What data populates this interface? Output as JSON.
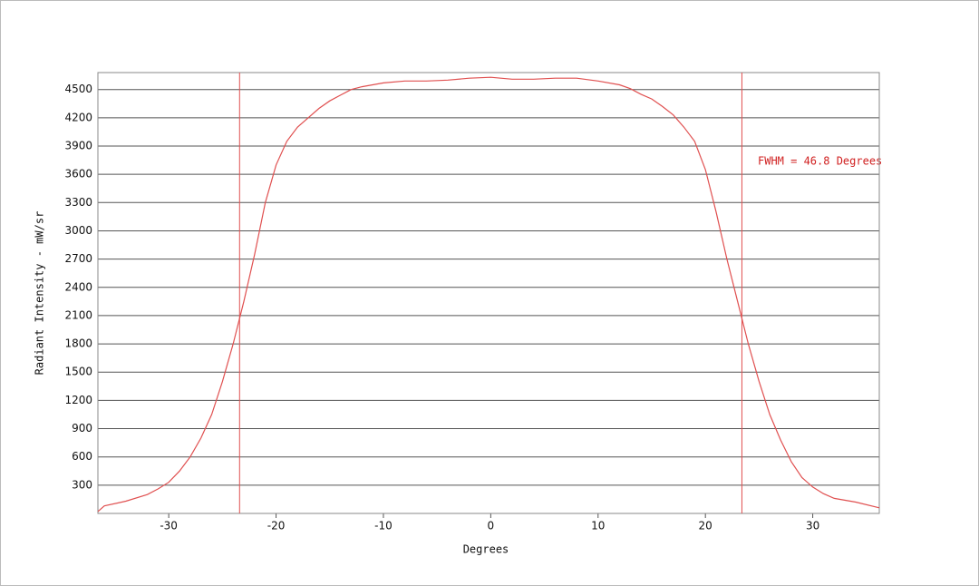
{
  "chart_data": {
    "type": "line",
    "x_label": "Degrees",
    "y_label": "Radiant Intensity - mW/sr",
    "annotation": "FWHM = 46.8 Degrees",
    "x": [
      -36.6,
      -36,
      -34,
      -32,
      -31,
      -30,
      -29,
      -28,
      -27,
      -26,
      -25,
      -24,
      -23,
      -22,
      -21,
      -20,
      -19,
      -18,
      -17,
      -16,
      -15,
      -14,
      -13,
      -12,
      -10,
      -8,
      -6,
      -4,
      -2,
      0,
      2,
      4,
      6,
      8,
      10,
      12,
      13,
      14,
      15,
      16,
      17,
      18,
      19,
      20,
      21,
      22,
      23,
      24,
      25,
      26,
      27,
      28,
      29,
      30,
      31,
      32,
      34,
      36.2
    ],
    "values": [
      20,
      80,
      130,
      200,
      260,
      330,
      450,
      600,
      800,
      1050,
      1400,
      1800,
      2250,
      2750,
      3300,
      3700,
      3950,
      4100,
      4200,
      4300,
      4380,
      4440,
      4500,
      4530,
      4570,
      4590,
      4590,
      4600,
      4620,
      4630,
      4610,
      4610,
      4620,
      4620,
      4590,
      4550,
      4510,
      4450,
      4400,
      4320,
      4230,
      4100,
      3950,
      3650,
      3200,
      2700,
      2250,
      1800,
      1400,
      1050,
      780,
      550,
      380,
      280,
      210,
      160,
      120,
      60
    ],
    "color": "#e05050",
    "markers": [
      -23.4,
      23.4
    ],
    "xlim": [
      -36.6,
      36.2
    ],
    "ylim": [
      0,
      4680
    ],
    "xticks": [
      -30,
      -20,
      -10,
      0,
      10,
      20,
      30
    ],
    "yticks": [
      300,
      600,
      900,
      1200,
      1500,
      1800,
      2100,
      2400,
      2700,
      3000,
      3300,
      3600,
      3900,
      4200,
      4500
    ],
    "grid": true
  }
}
